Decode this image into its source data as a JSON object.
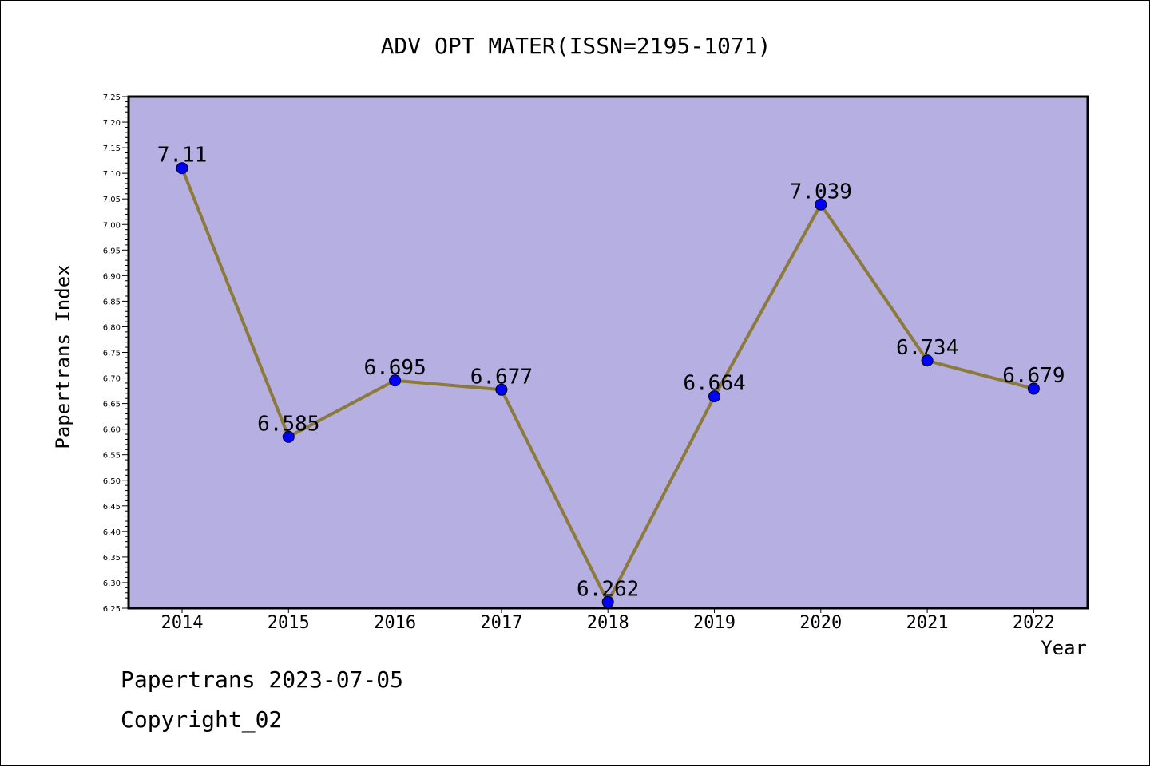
{
  "chart_data": {
    "type": "line",
    "title": "ADV OPT MATER(ISSN=2195-1071)",
    "xlabel": "Year",
    "ylabel": "Papertrans Index",
    "x": [
      "2014",
      "2015",
      "2016",
      "2017",
      "2018",
      "2019",
      "2020",
      "2021",
      "2022"
    ],
    "values": [
      7.11,
      6.585,
      6.695,
      6.677,
      6.262,
      6.664,
      7.039,
      6.734,
      6.679
    ],
    "data_labels": [
      "7.11",
      "6.585",
      "6.695",
      "6.677",
      "6.262",
      "6.664",
      "7.039",
      "6.734",
      "6.679"
    ],
    "ylim": [
      6.25,
      7.25
    ],
    "yticks": [
      "6.25",
      "6.30",
      "6.35",
      "6.40",
      "6.45",
      "6.50",
      "6.55",
      "6.60",
      "6.65",
      "6.70",
      "6.75",
      "6.80",
      "6.85",
      "6.90",
      "6.95",
      "7.00",
      "7.05",
      "7.10",
      "7.15",
      "7.20",
      "7.25"
    ],
    "grid": false,
    "colors": {
      "plot_background": "#b5afe2",
      "line": "#8b7a3a",
      "marker": "#0000ff"
    }
  },
  "footer": {
    "line1": "Papertrans 2023-07-05",
    "line2": "Copyright_02"
  }
}
